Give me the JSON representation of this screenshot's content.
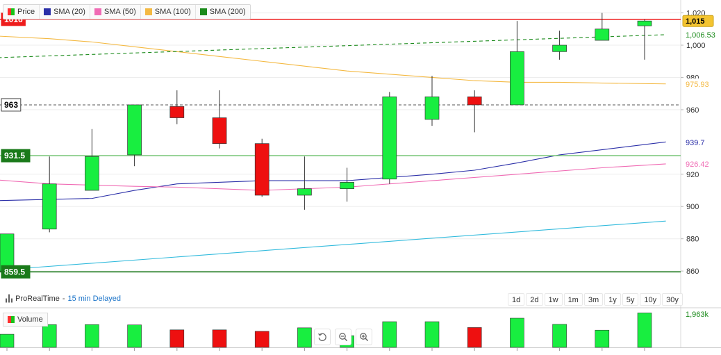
{
  "legend": [
    {
      "label": "Price",
      "color": "split"
    },
    {
      "label": "SMA (20)",
      "color": "#2b2fa8"
    },
    {
      "label": "SMA (50)",
      "color": "#f06bb4"
    },
    {
      "label": "SMA (100)",
      "color": "#f4b942"
    },
    {
      "label": "SMA (200)",
      "color": "#1a8a1a"
    }
  ],
  "brand": {
    "name": "ProRealTime",
    "separator": "-",
    "delay": "15 min Delayed"
  },
  "periods": [
    "1d",
    "2d",
    "1w",
    "1m",
    "3m",
    "1y",
    "5y",
    "10y",
    "30y"
  ],
  "volume_label": "Volume",
  "volume_last_label": "1,963k",
  "zoom_icons": [
    "reset-icon",
    "zoom-out-icon",
    "zoom-in-icon"
  ],
  "chart_data": {
    "type": "candlestick",
    "ylim": [
      848,
      1028
    ],
    "y_ticks": [
      {
        "value": 860,
        "label": "860"
      },
      {
        "value": 880,
        "label": "880"
      },
      {
        "value": 900,
        "label": "900"
      },
      {
        "value": 920,
        "label": "920"
      },
      {
        "value": 960,
        "label": "960"
      },
      {
        "value": 980,
        "label": "980"
      },
      {
        "value": 1000,
        "label": "1,000"
      },
      {
        "value": 1020,
        "label": "1,020"
      }
    ],
    "candles": [
      {
        "open": 860,
        "close": 883,
        "high": 883,
        "low": 858
      },
      {
        "open": 886,
        "close": 914,
        "high": 931,
        "low": 884
      },
      {
        "open": 910,
        "close": 931,
        "high": 948,
        "low": 910
      },
      {
        "open": 932,
        "close": 963,
        "high": 963,
        "low": 925
      },
      {
        "open": 962,
        "close": 955,
        "high": 972,
        "low": 951
      },
      {
        "open": 955,
        "close": 939,
        "high": 972,
        "low": 936
      },
      {
        "open": 939,
        "close": 907,
        "high": 942,
        "low": 906
      },
      {
        "open": 907,
        "close": 911,
        "high": 931,
        "low": 898
      },
      {
        "open": 911,
        "close": 915,
        "high": 924,
        "low": 903
      },
      {
        "open": 917,
        "close": 968,
        "high": 971,
        "low": 914
      },
      {
        "open": 954,
        "close": 968,
        "high": 981,
        "low": 950
      },
      {
        "open": 968,
        "close": 963,
        "high": 972,
        "low": 946
      },
      {
        "open": 963,
        "close": 996,
        "high": 1015,
        "low": 963
      },
      {
        "open": 996,
        "close": 1000,
        "high": 1009,
        "low": 991
      },
      {
        "open": 1003,
        "close": 1010,
        "high": 1020,
        "low": 1003
      },
      {
        "open": 1012,
        "close": 1015,
        "high": 1016,
        "low": 991
      }
    ],
    "volume": [
      0.45,
      0.78,
      0.78,
      0.77,
      0.6,
      0.6,
      0.55,
      0.67,
      0.4,
      0.88,
      0.88,
      0.68,
      1.0,
      0.79,
      0.59,
      1.18
    ],
    "sma": [
      {
        "name": "SMA (20)",
        "color": "#2b2fa8",
        "style": "solid",
        "points": [
          [
            -0.5,
            903.5
          ],
          [
            2,
            905
          ],
          [
            3,
            910
          ],
          [
            4,
            914
          ],
          [
            6,
            916
          ],
          [
            8,
            916
          ],
          [
            10,
            920
          ],
          [
            11,
            922.5
          ],
          [
            12,
            927
          ],
          [
            13,
            932
          ],
          [
            15.5,
            940
          ]
        ]
      },
      {
        "name": "SMA (50)",
        "color": "#f06bb4",
        "style": "solid",
        "points": [
          [
            -0.5,
            917
          ],
          [
            1,
            914
          ],
          [
            3,
            912.5
          ],
          [
            4,
            912
          ],
          [
            6,
            910
          ],
          [
            8,
            912
          ],
          [
            10,
            916
          ],
          [
            12,
            920
          ],
          [
            14,
            924
          ],
          [
            15.5,
            926.4
          ]
        ]
      },
      {
        "name": "SMA (100)",
        "color": "#f4b942",
        "style": "solid",
        "points": [
          [
            -0.5,
            1006
          ],
          [
            1,
            1004
          ],
          [
            2,
            1002
          ],
          [
            3,
            999
          ],
          [
            4,
            996
          ],
          [
            5,
            993
          ],
          [
            6,
            990
          ],
          [
            7,
            987
          ],
          [
            8,
            984
          ],
          [
            9,
            982
          ],
          [
            10,
            980
          ],
          [
            11,
            978
          ],
          [
            12,
            977
          ],
          [
            13,
            977
          ],
          [
            14,
            976.5
          ],
          [
            15.5,
            976
          ]
        ]
      },
      {
        "name": "SMA (200)",
        "color": "#1a8a1a",
        "style": "dashed",
        "points": [
          [
            -0.5,
            992
          ],
          [
            15.5,
            1006.5
          ]
        ]
      },
      {
        "name": "",
        "color": "#33bbdd",
        "style": "solid",
        "points": [
          [
            -0.5,
            860
          ],
          [
            15.5,
            891
          ]
        ]
      }
    ],
    "h_lines": [
      {
        "value": 1016,
        "label": "1016",
        "color": "#ee1c1c",
        "style": "solid",
        "label_bg": "#ee1c1c",
        "label_fg": "#ffffff"
      },
      {
        "value": 963,
        "label": "963",
        "color": "#555555",
        "style": "dashed",
        "label_bg": "#ffffff",
        "label_fg": "#000000"
      },
      {
        "value": 931.5,
        "label": "931.5",
        "color": "#7ec87e",
        "style": "solid",
        "label_bg": "#1a7a1a",
        "label_fg": "#ffffff"
      },
      {
        "value": 859.5,
        "label": "859.5",
        "color": "#1a7a1a",
        "style": "solid",
        "label_bg": "#1a7a1a",
        "label_fg": "#ffffff"
      }
    ],
    "right_labels": [
      {
        "value": 1015,
        "label": "1,015",
        "bg": "#f4c430",
        "fg": "#000000"
      },
      {
        "value": 1006.53,
        "label": "1,006.53",
        "bg": "#ffffff",
        "fg": "#1a8a1a"
      },
      {
        "value": 975.93,
        "label": "975.93",
        "bg": "#ffffff",
        "fg": "#f4b942"
      },
      {
        "value": 939.7,
        "label": "939.7",
        "bg": "#ffffff",
        "fg": "#2b2fa8"
      },
      {
        "value": 926.42,
        "label": "926.42",
        "bg": "#ffffff",
        "fg": "#f06bb4"
      }
    ],
    "colors": {
      "up": "#18ee40",
      "down": "#ee1010",
      "wick": "#333333"
    }
  }
}
